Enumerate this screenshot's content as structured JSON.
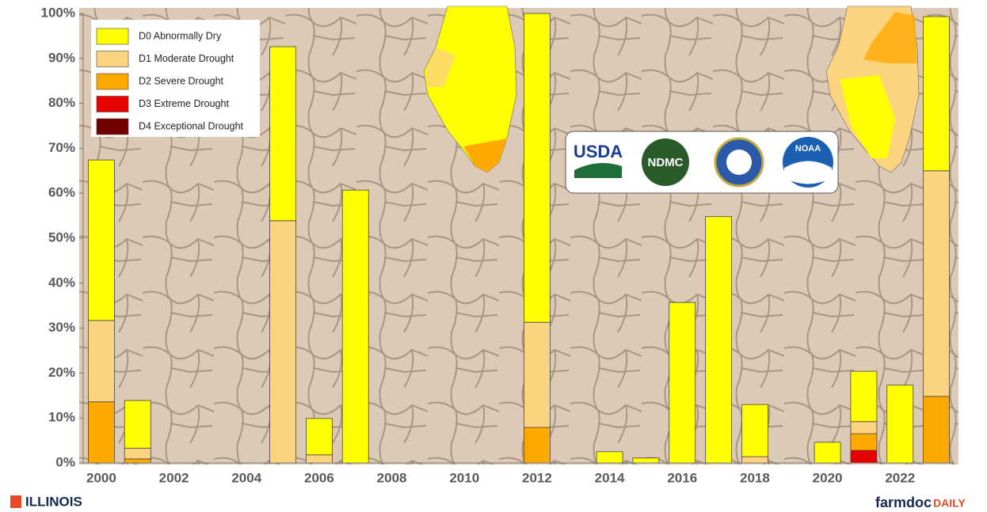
{
  "chart_data": {
    "type": "stacked-bar",
    "categories": [
      "2000",
      null,
      "2002",
      null,
      "2004",
      null,
      "2006",
      null,
      "2008",
      null,
      "2010",
      null,
      "2012",
      null,
      "2014",
      null,
      "2016",
      null,
      "2018",
      null,
      "2020",
      null,
      "2022",
      null
    ],
    "series": [
      {
        "name": "D0 Abnormally Dry",
        "color": "#ffff00",
        "values": [
          35.7,
          10.6,
          0,
          0,
          0,
          38.7,
          8.1,
          60.7,
          0,
          0,
          0,
          0,
          68.7,
          0,
          2.5,
          1.1,
          35.7,
          54.8,
          11.6,
          0,
          4.6,
          11.2,
          17.3,
          34.3
        ]
      },
      {
        "name": "D1 Moderate Drought",
        "color": "#fcd37f",
        "values": [
          18.1,
          2.4,
          0,
          0,
          0,
          53.9,
          1.8,
          0,
          0,
          0,
          0,
          0,
          23.4,
          0,
          0,
          0,
          0,
          0,
          1.4,
          0,
          0,
          2.7,
          0,
          50.2
        ]
      },
      {
        "name": "D2 Severe Drought",
        "color": "#ffaa00",
        "values": [
          13.6,
          0.9,
          0,
          0,
          0,
          0,
          0,
          0,
          0,
          0,
          0,
          0,
          7.9,
          0,
          0,
          0,
          0,
          0,
          0,
          0,
          0,
          3.7,
          0,
          14.8
        ]
      },
      {
        "name": "D3 Extreme Drought",
        "color": "#e60000",
        "values": [
          0,
          0,
          0,
          0,
          0,
          0,
          0,
          0,
          0,
          0,
          0,
          0,
          0,
          0,
          0,
          0,
          0,
          0,
          0,
          0,
          0,
          2.8,
          0,
          0
        ]
      },
      {
        "name": "D4 Exceptional Drought",
        "color": "#730000",
        "values": [
          0,
          0,
          0,
          0,
          0,
          0,
          0,
          0,
          0,
          0,
          0,
          0,
          0,
          0,
          0,
          0,
          0,
          0,
          0,
          0,
          0,
          0,
          0,
          0
        ]
      }
    ],
    "ylim": [
      0,
      100
    ],
    "yticks": [
      {
        "value": 0,
        "label": "0%"
      },
      {
        "value": 10,
        "label": "10%"
      },
      {
        "value": 20,
        "label": "20%"
      },
      {
        "value": 30,
        "label": "30%"
      },
      {
        "value": 40,
        "label": "40%"
      },
      {
        "value": 50,
        "label": "50%"
      },
      {
        "value": 60,
        "label": "60%"
      },
      {
        "value": 70,
        "label": "70%"
      },
      {
        "value": 80,
        "label": "80%"
      },
      {
        "value": 90,
        "label": "90%"
      },
      {
        "value": 100,
        "label": "100%"
      }
    ],
    "legend": "top-left"
  },
  "logos": [
    "USDA",
    "NDMC",
    "NOAA"
  ],
  "footer": {
    "left": "ILLINOIS",
    "right_a": "farmdoc",
    "right_b": "DAILY"
  }
}
